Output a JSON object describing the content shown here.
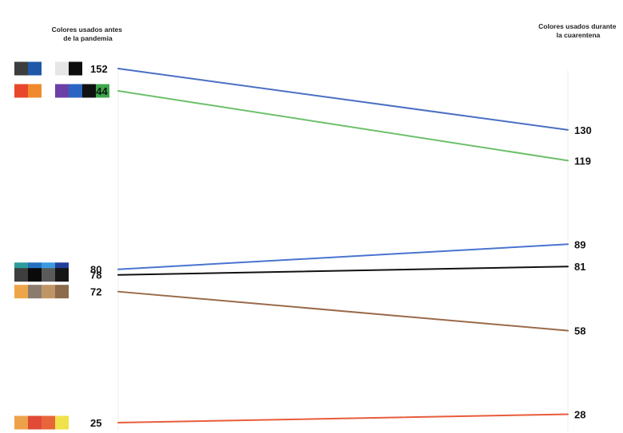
{
  "chart_data": {
    "type": "line",
    "chart_subtype": "slope",
    "x": [
      "Colores usados antes de la pandemia",
      "Colores usados durante la cuarentena"
    ],
    "header_left_lines": [
      "Colores usados antes",
      "de la pandemia"
    ],
    "header_right_lines": [
      "Colores usados durante",
      "la cuarentena"
    ],
    "ylim": [
      20,
      160
    ],
    "grid": false,
    "legend": "none",
    "series": [
      {
        "color": "#4a6fc4",
        "values": [
          152,
          130
        ],
        "swatches": [
          "#3d3d3d",
          "#1f58a8",
          "#ffffff",
          "#e6e6e6",
          "#0d0d0d"
        ]
      },
      {
        "color": "#6cc06a",
        "values": [
          144,
          119
        ],
        "swatches": [
          "#e8472b",
          "#f08a2d",
          "#ffffff",
          "#6b3fa6",
          "#2a65c2",
          "#111111",
          "#3da64a"
        ]
      },
      {
        "color": "#4a74d0",
        "values": [
          80,
          89
        ],
        "swatches": [
          "#2c9c9c",
          "#2370c2",
          "#3b9be0",
          "#223f9a"
        ]
      },
      {
        "color": "#111111",
        "values": [
          78,
          81
        ],
        "swatches": [
          "#3e3e3e",
          "#0a0a0a",
          "#5a5a5a",
          "#151515"
        ]
      },
      {
        "color": "#9a6a4a",
        "values": [
          72,
          58
        ],
        "swatches": [
          "#eea54a",
          "#8a7b6e",
          "#c09566",
          "#8c6a4c"
        ]
      },
      {
        "color": "#e85c3a",
        "values": [
          25,
          28
        ],
        "swatches": [
          "#eda24a",
          "#e04a36",
          "#e8653a",
          "#f0e24a"
        ]
      }
    ]
  }
}
